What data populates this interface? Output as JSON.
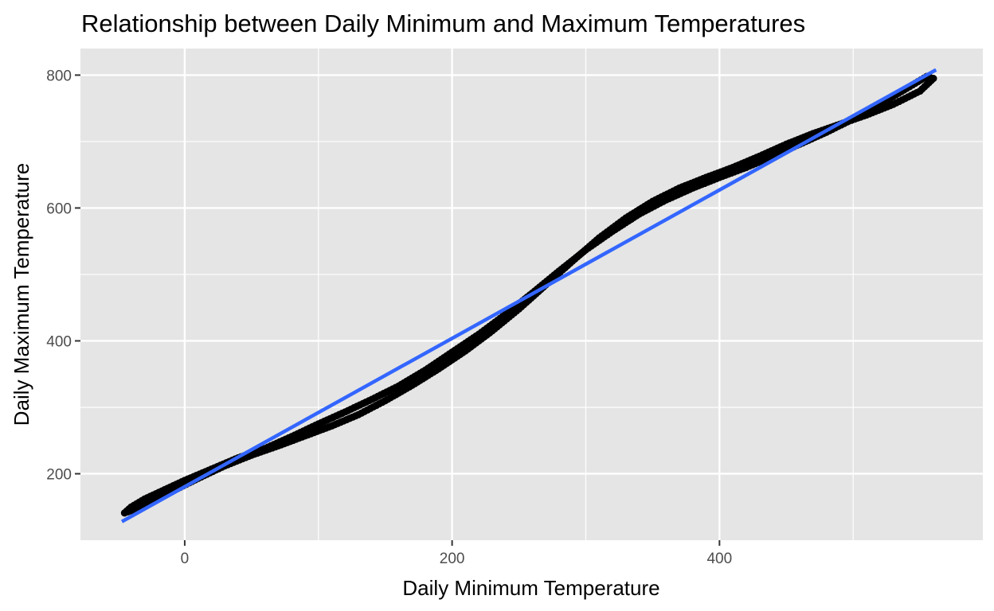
{
  "chart_data": {
    "type": "scatter",
    "title": "Relationship between Daily Minimum and Maximum Temperatures",
    "xlabel": "Daily Minimum Temperature",
    "ylabel": "Daily Maximum Temperature",
    "xlim": [
      -78,
      597
    ],
    "ylim": [
      100,
      840
    ],
    "x_ticks": [
      0,
      200,
      400
    ],
    "x_tick_labels": [
      "0",
      "200",
      "400"
    ],
    "y_ticks": [
      200,
      400,
      600,
      800
    ],
    "y_tick_labels": [
      "200",
      "400",
      "600",
      "800"
    ],
    "grid": true,
    "legend": "none",
    "colors": {
      "panel_background": "#e5e5e5",
      "grid": "#ffffff",
      "points": "#000000",
      "fit_line": "#3366ff",
      "tick_text": "#4d4d4d",
      "tick_mark": "#333333"
    },
    "series": [
      {
        "values": [
          {
            "x": -45,
            "y": 141
          },
          {
            "x": -40,
            "y": 150
          },
          {
            "x": -30,
            "y": 162
          },
          {
            "x": -15,
            "y": 176
          },
          {
            "x": 0,
            "y": 190
          },
          {
            "x": 20,
            "y": 207
          },
          {
            "x": 40,
            "y": 224
          },
          {
            "x": 60,
            "y": 238
          },
          {
            "x": 80,
            "y": 256
          },
          {
            "x": 100,
            "y": 275
          },
          {
            "x": 120,
            "y": 293
          },
          {
            "x": 140,
            "y": 312
          },
          {
            "x": 160,
            "y": 332
          },
          {
            "x": 180,
            "y": 356
          },
          {
            "x": 200,
            "y": 383
          },
          {
            "x": 220,
            "y": 410
          },
          {
            "x": 240,
            "y": 440
          },
          {
            "x": 260,
            "y": 472
          },
          {
            "x": 280,
            "y": 505
          },
          {
            "x": 300,
            "y": 537
          },
          {
            "x": 320,
            "y": 565
          },
          {
            "x": 340,
            "y": 591
          },
          {
            "x": 360,
            "y": 612
          },
          {
            "x": 380,
            "y": 630
          },
          {
            "x": 400,
            "y": 646
          },
          {
            "x": 420,
            "y": 661
          },
          {
            "x": 440,
            "y": 678
          },
          {
            "x": 460,
            "y": 696
          },
          {
            "x": 480,
            "y": 714
          },
          {
            "x": 500,
            "y": 734
          },
          {
            "x": 520,
            "y": 756
          },
          {
            "x": 540,
            "y": 780
          },
          {
            "x": 555,
            "y": 798
          },
          {
            "x": 560,
            "y": 795
          },
          {
            "x": 550,
            "y": 776
          },
          {
            "x": 530,
            "y": 756
          },
          {
            "x": 510,
            "y": 740
          },
          {
            "x": 490,
            "y": 726
          },
          {
            "x": 470,
            "y": 712
          },
          {
            "x": 450,
            "y": 696
          },
          {
            "x": 430,
            "y": 678
          },
          {
            "x": 410,
            "y": 661
          },
          {
            "x": 390,
            "y": 646
          },
          {
            "x": 370,
            "y": 630
          },
          {
            "x": 350,
            "y": 610
          },
          {
            "x": 330,
            "y": 585
          },
          {
            "x": 310,
            "y": 555
          },
          {
            "x": 290,
            "y": 520
          },
          {
            "x": 270,
            "y": 484
          },
          {
            "x": 250,
            "y": 448
          },
          {
            "x": 230,
            "y": 415
          },
          {
            "x": 210,
            "y": 385
          },
          {
            "x": 190,
            "y": 358
          },
          {
            "x": 170,
            "y": 333
          },
          {
            "x": 150,
            "y": 310
          },
          {
            "x": 130,
            "y": 289
          },
          {
            "x": 110,
            "y": 272
          },
          {
            "x": 90,
            "y": 257
          },
          {
            "x": 70,
            "y": 242
          },
          {
            "x": 50,
            "y": 228
          },
          {
            "x": 30,
            "y": 212
          },
          {
            "x": 10,
            "y": 193
          },
          {
            "x": -10,
            "y": 173
          },
          {
            "x": -25,
            "y": 158
          },
          {
            "x": -38,
            "y": 146
          }
        ]
      }
    ],
    "fit_line": {
      "x": [
        -47,
        562
      ],
      "y": [
        128,
        808
      ]
    }
  }
}
